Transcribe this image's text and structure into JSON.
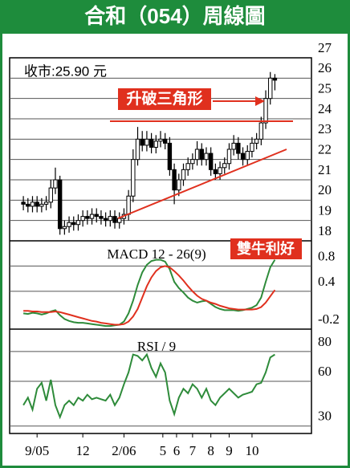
{
  "chart_data": [
    {
      "type": "candlestick",
      "title": "合和（054）周線圖",
      "annotations": [
        "收市:25.90 元",
        "升破三角形"
      ],
      "x": [
        0,
        1,
        2,
        3,
        4,
        5,
        6,
        7,
        8,
        9,
        10,
        11,
        12,
        13,
        14,
        15,
        16,
        17,
        18,
        19,
        20,
        21,
        22,
        23,
        24,
        25,
        26,
        27,
        28,
        29,
        30,
        31,
        32,
        33,
        34,
        35,
        36,
        37,
        38,
        39,
        40,
        41,
        42,
        43,
        44,
        45,
        46,
        47,
        48,
        49,
        50,
        51,
        52,
        53,
        54,
        55
      ],
      "xlim": [
        -3,
        63
      ],
      "xticks": [
        {
          "value": 3,
          "label": "9/05"
        },
        {
          "value": 13,
          "label": "12"
        },
        {
          "value": 22,
          "label": "2/06"
        },
        {
          "value": 30.5,
          "label": "5"
        },
        {
          "value": 33.5,
          "label": "6"
        },
        {
          "value": 37,
          "label": "7"
        },
        {
          "value": 41,
          "label": "8"
        },
        {
          "value": 45,
          "label": "9"
        },
        {
          "value": 50,
          "label": "10"
        }
      ],
      "ylim": [
        18,
        27
      ],
      "yticks": [
        18,
        19,
        20,
        21,
        22,
        23,
        24,
        25,
        26,
        27
      ],
      "grid": true,
      "color": "#000000",
      "open": [
        19.9,
        19.8,
        19.7,
        19.9,
        19.7,
        19.8,
        19.9,
        20.6,
        21.0,
        18.6,
        18.7,
        18.9,
        18.8,
        19.0,
        19.2,
        19.1,
        19.3,
        19.2,
        19.1,
        19.0,
        19.2,
        18.9,
        19.1,
        19.3,
        20.2,
        22.0,
        23.0,
        22.7,
        23.0,
        22.6,
        22.9,
        23.0,
        22.8,
        21.5,
        20.5,
        21.0,
        21.5,
        21.8,
        22.0,
        22.5,
        22.0,
        22.3,
        21.5,
        21.3,
        21.6,
        21.8,
        22.5,
        22.8,
        22.3,
        22.0,
        22.4,
        22.8,
        23.0,
        23.8,
        25.0,
        26.0
      ],
      "high": [
        20.2,
        20.1,
        20.2,
        20.2,
        20.1,
        20.2,
        21.0,
        21.6,
        21.2,
        19.0,
        19.2,
        19.2,
        19.3,
        19.5,
        19.5,
        19.6,
        19.6,
        19.5,
        19.4,
        19.5,
        19.5,
        19.4,
        19.6,
        20.5,
        22.5,
        23.6,
        23.4,
        23.4,
        23.3,
        23.2,
        23.4,
        23.3,
        23.1,
        21.8,
        21.3,
        21.8,
        22.1,
        22.3,
        22.9,
        22.8,
        22.6,
        22.6,
        21.8,
        21.9,
        22.1,
        22.8,
        23.2,
        23.1,
        22.6,
        22.7,
        23.1,
        23.3,
        24.1,
        25.4,
        26.3,
        26.2
      ],
      "low": [
        19.5,
        19.4,
        19.4,
        19.4,
        19.4,
        19.5,
        19.6,
        20.3,
        18.3,
        18.3,
        18.4,
        18.5,
        18.5,
        18.7,
        18.8,
        18.8,
        18.9,
        18.8,
        18.7,
        18.7,
        18.6,
        18.6,
        18.8,
        19.0,
        19.9,
        21.7,
        22.4,
        22.4,
        22.3,
        22.3,
        22.6,
        22.5,
        21.2,
        19.8,
        20.2,
        20.7,
        21.2,
        21.5,
        21.7,
        21.7,
        21.7,
        21.2,
        21.0,
        21.0,
        21.3,
        21.5,
        22.2,
        22.0,
        21.7,
        21.7,
        22.1,
        22.5,
        22.7,
        23.5,
        24.7,
        25.4
      ],
      "close": [
        19.8,
        19.7,
        19.9,
        19.7,
        19.8,
        19.9,
        20.6,
        21.0,
        18.6,
        18.7,
        18.9,
        18.8,
        19.0,
        19.2,
        19.1,
        19.3,
        19.2,
        19.1,
        19.0,
        19.2,
        18.9,
        19.1,
        19.3,
        20.2,
        22.0,
        23.0,
        22.7,
        23.0,
        22.6,
        22.9,
        23.0,
        22.8,
        21.5,
        20.5,
        21.0,
        21.5,
        21.8,
        22.0,
        22.5,
        22.0,
        22.3,
        21.5,
        21.3,
        21.6,
        21.8,
        22.5,
        22.8,
        22.3,
        22.0,
        22.4,
        22.8,
        23.0,
        23.8,
        25.0,
        26.0,
        25.9
      ]
    },
    {
      "type": "line",
      "title": "MACD 12 - 26(9)",
      "annotation": "雙牛利好",
      "ylim": [
        -0.2,
        1.2
      ],
      "yticks": [
        -0.2,
        0.4,
        0.8
      ],
      "grid": true,
      "series": [
        {
          "color": "#2e8b3a",
          "values": [
            0.05,
            0.04,
            0.06,
            0.05,
            0.03,
            0.05,
            0.08,
            0.1,
            0.02,
            -0.04,
            -0.07,
            -0.09,
            -0.1,
            -0.1,
            -0.11,
            -0.12,
            -0.13,
            -0.14,
            -0.15,
            -0.15,
            -0.14,
            -0.13,
            -0.08,
            0.05,
            0.25,
            0.5,
            0.7,
            0.82,
            0.88,
            0.9,
            0.9,
            0.87,
            0.75,
            0.55,
            0.45,
            0.38,
            0.3,
            0.25,
            0.22,
            0.24,
            0.25,
            0.2,
            0.15,
            0.12,
            0.1,
            0.1,
            0.1,
            0.09,
            0.1,
            0.12,
            0.14,
            0.18,
            0.3,
            0.55,
            0.78,
            0.9
          ]
        },
        {
          "color": "#e0301e",
          "values": [
            0.09,
            0.09,
            0.08,
            0.08,
            0.07,
            0.07,
            0.07,
            0.08,
            0.07,
            0.05,
            0.03,
            0.01,
            -0.01,
            -0.03,
            -0.05,
            -0.07,
            -0.08,
            -0.1,
            -0.11,
            -0.12,
            -0.13,
            -0.13,
            -0.12,
            -0.08,
            0,
            0.12,
            0.3,
            0.48,
            0.62,
            0.72,
            0.78,
            0.8,
            0.78,
            0.72,
            0.65,
            0.57,
            0.48,
            0.4,
            0.33,
            0.28,
            0.25,
            0.22,
            0.2,
            0.17,
            0.15,
            0.13,
            0.12,
            0.11,
            0.11,
            0.11,
            0.11,
            0.12,
            0.15,
            0.22,
            0.32,
            0.42
          ]
        }
      ]
    },
    {
      "type": "line",
      "title": "RSI / 9",
      "ylim": [
        25,
        95
      ],
      "yticks": [
        30,
        60,
        80
      ],
      "grid": true,
      "series": [
        {
          "color": "#2e8b3a",
          "values": [
            44,
            49,
            41,
            55,
            59,
            47,
            61,
            44,
            36,
            44,
            47,
            44,
            49,
            47,
            51,
            48,
            49,
            48,
            47,
            51,
            44,
            49,
            58,
            66,
            78,
            77,
            74,
            78,
            69,
            63,
            72,
            66,
            47,
            38,
            49,
            55,
            52,
            58,
            55,
            49,
            55,
            47,
            44,
            49,
            52,
            55,
            52,
            49,
            51,
            52,
            53,
            58,
            59,
            66,
            76,
            78
          ]
        }
      ]
    }
  ]
}
